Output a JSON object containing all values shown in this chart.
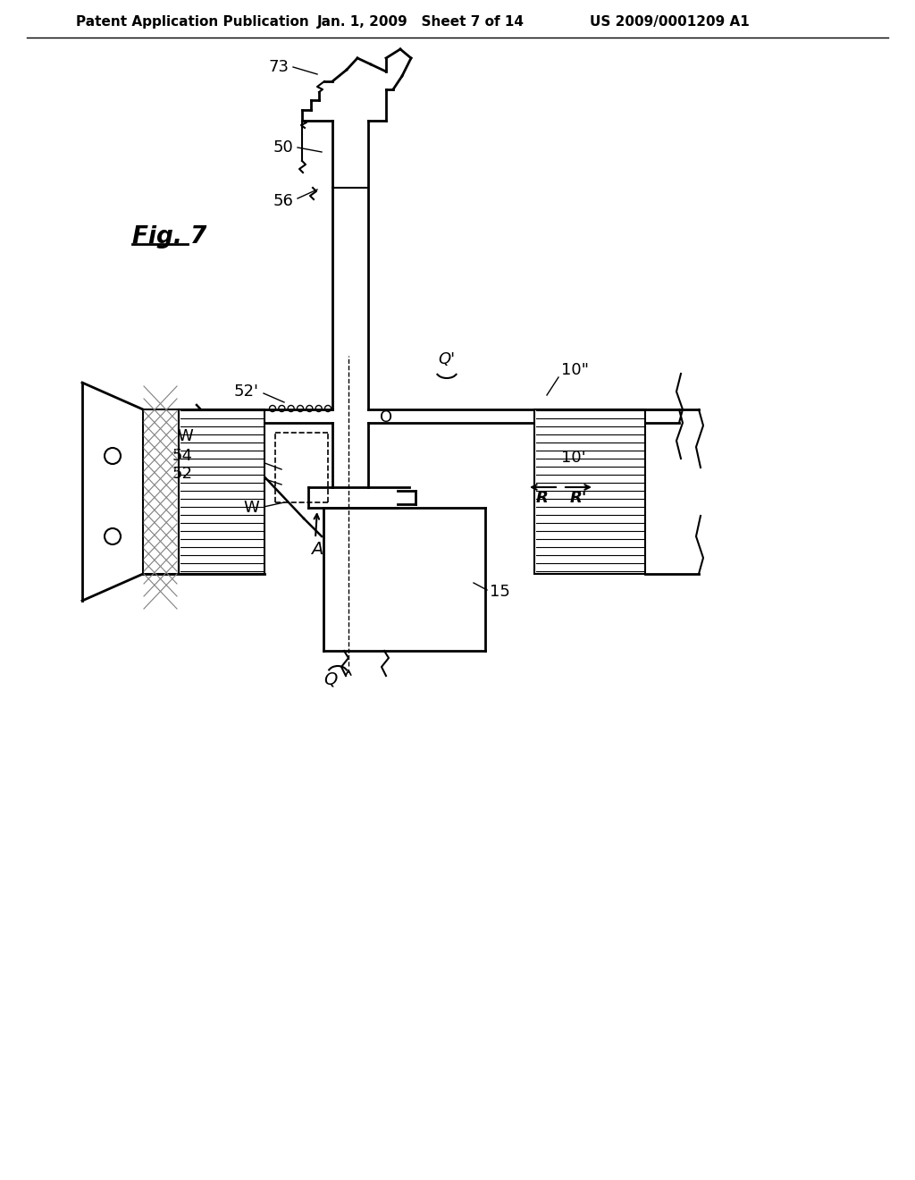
{
  "header_left": "Patent Application Publication",
  "header_center": "Jan. 1, 2009   Sheet 7 of 14",
  "header_right": "US 2009/0001209 A1",
  "bg_color": "#ffffff"
}
